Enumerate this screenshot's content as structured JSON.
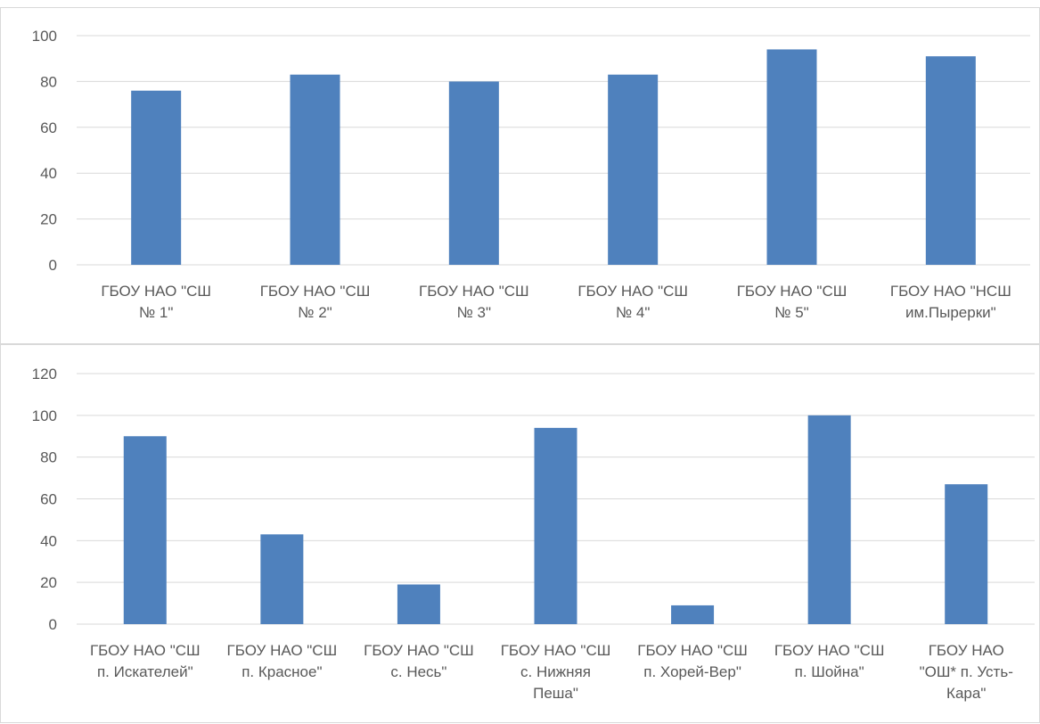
{
  "chart_data": [
    {
      "type": "bar",
      "categories": [
        [
          "ГБОУ НАО \"СШ",
          "№ 1\""
        ],
        [
          "ГБОУ НАО \"СШ",
          "№ 2\""
        ],
        [
          "ГБОУ НАО \"СШ",
          "№ 3\""
        ],
        [
          "ГБОУ НАО \"СШ",
          "№ 4\""
        ],
        [
          "ГБОУ НАО \"СШ",
          "№ 5\""
        ],
        [
          "ГБОУ НАО \"НСШ",
          "им.Пырерки\""
        ]
      ],
      "values": [
        76,
        83,
        80,
        83,
        94,
        91
      ],
      "ylim": [
        0,
        100
      ],
      "yticks": [
        0,
        20,
        40,
        60,
        80,
        100
      ],
      "bar_color": "#4f81bd",
      "grid": true,
      "title": "",
      "xlabel": "",
      "ylabel": ""
    },
    {
      "type": "bar",
      "categories": [
        [
          "ГБОУ НАО \"СШ",
          "п. Искателей\""
        ],
        [
          "ГБОУ НАО \"СШ",
          "п. Красное\""
        ],
        [
          "ГБОУ НАО \"СШ",
          "с. Несь\""
        ],
        [
          "ГБОУ НАО \"СШ",
          "с. Нижняя",
          "Пеша\""
        ],
        [
          "ГБОУ НАО \"СШ",
          "п. Хорей-Вер\""
        ],
        [
          "ГБОУ НАО \"СШ",
          "п. Шойна\""
        ],
        [
          "ГБОУ НАО",
          "\"ОШ* п. Усть-",
          "Кара\""
        ]
      ],
      "values": [
        90,
        43,
        19,
        94,
        9,
        100,
        67
      ],
      "ylim": [
        0,
        120
      ],
      "yticks": [
        0,
        20,
        40,
        60,
        80,
        100,
        120
      ],
      "bar_color": "#4f81bd",
      "grid": true,
      "title": "",
      "xlabel": "",
      "ylabel": ""
    }
  ]
}
